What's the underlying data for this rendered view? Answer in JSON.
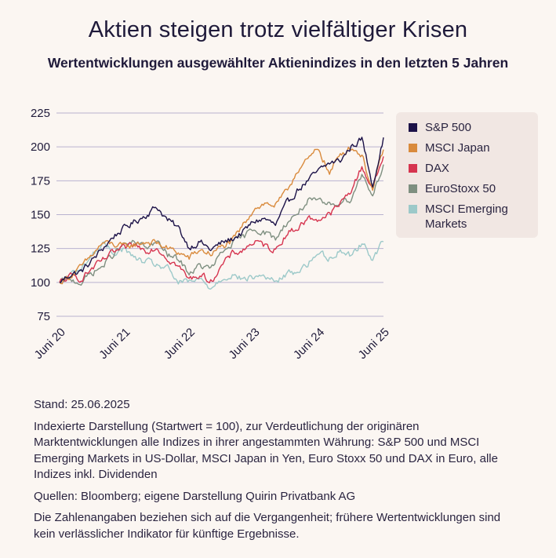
{
  "title": "Aktien steigen trotz vielfältiger Krisen",
  "subtitle": "Wertentwicklungen ausgewählter Aktienindizes in den letzten 5 Jahren",
  "notes": {
    "stand": "Stand: 25.06.2025",
    "description": "Indexierte Darstellung (Startwert = 100), zur Verdeutlichung der originären Marktentwicklungen alle Indizes in ihrer angestammten Währung: S&P 500 und MSCI Emerging Markets in US-Dollar, MSCI Japan in Yen, Euro Stoxx 50 und DAX in Euro, alle Indizes inkl. Dividenden",
    "sources": "Quellen: Bloomberg; eigene Darstellung Quirin Privatbank AG",
    "disclaimer": "Die Zahlenangaben beziehen sich auf die Vergangenheit; frühere Wertentwicklungen sind kein verlässlicher Indikator für künftige Ergebnisse."
  },
  "chart_data": {
    "type": "line",
    "title": "Aktien steigen trotz vielfältiger Krisen",
    "subtitle": "Wertentwicklungen ausgewählter Aktienindizes in den letzten 5 Jahren",
    "x_ticks": [
      "Juni 20",
      "Juni 21",
      "Juni 22",
      "Juni 23",
      "Juni 24",
      "Juni 25"
    ],
    "y_ticks": [
      75,
      100,
      125,
      150,
      175,
      200,
      225
    ],
    "ylim": [
      75,
      225
    ],
    "xlim": [
      "2020-06",
      "2025-06"
    ],
    "grid": "horizontal",
    "legend_position": "right",
    "x": [
      "2020-06",
      "2020-08",
      "2020-10",
      "2020-12",
      "2021-02",
      "2021-04",
      "2021-06",
      "2021-08",
      "2021-10",
      "2021-12",
      "2022-02",
      "2022-04",
      "2022-06",
      "2022-08",
      "2022-10",
      "2022-12",
      "2023-02",
      "2023-04",
      "2023-06",
      "2023-08",
      "2023-10",
      "2023-12",
      "2024-02",
      "2024-04",
      "2024-06",
      "2024-08",
      "2024-10",
      "2024-12",
      "2025-02",
      "2025-04",
      "2025-06"
    ],
    "series": [
      {
        "name": "S&P 500",
        "color": "#1c1248",
        "values": [
          100,
          106,
          108,
          116,
          125,
          134,
          140,
          145,
          150,
          156,
          146,
          140,
          126,
          130,
          124,
          129,
          132,
          137,
          145,
          147,
          142,
          157,
          168,
          175,
          182,
          188,
          190,
          200,
          206,
          172,
          207
        ]
      },
      {
        "name": "MSCI Japan",
        "color": "#d98a3c",
        "values": [
          100,
          105,
          111,
          120,
          129,
          128,
          126,
          128,
          130,
          129,
          125,
          122,
          118,
          124,
          121,
          126,
          130,
          142,
          155,
          158,
          157,
          166,
          183,
          190,
          199,
          180,
          195,
          200,
          194,
          168,
          198
        ]
      },
      {
        "name": "DAX",
        "color": "#d6344f",
        "values": [
          100,
          104,
          103,
          110,
          116,
          122,
          125,
          127,
          124,
          126,
          118,
          112,
          102,
          106,
          101,
          112,
          121,
          124,
          130,
          127,
          124,
          136,
          140,
          147,
          147,
          150,
          158,
          168,
          185,
          170,
          193
        ]
      },
      {
        "name": "EuroStoxx 50",
        "color": "#7e8f80",
        "values": [
          100,
          102,
          100,
          107,
          112,
          121,
          128,
          129,
          126,
          130,
          120,
          117,
          107,
          112,
          110,
          121,
          129,
          133,
          140,
          137,
          132,
          144,
          151,
          160,
          159,
          157,
          160,
          162,
          180,
          165,
          187
        ]
      },
      {
        "name": "MSCI Emerging Markets",
        "color": "#9cc9c9",
        "values": [
          100,
          106,
          110,
          120,
          128,
          122,
          125,
          117,
          115,
          113,
          110,
          100,
          100,
          102,
          96,
          103,
          106,
          102,
          104,
          105,
          100,
          106,
          108,
          114,
          122,
          118,
          124,
          120,
          129,
          118,
          130
        ]
      }
    ]
  },
  "colors": {
    "background": "#fbf6f2",
    "legend_bg": "#f1e7e3",
    "grid": "#b9b2cf",
    "text": "#1f1a3a"
  }
}
